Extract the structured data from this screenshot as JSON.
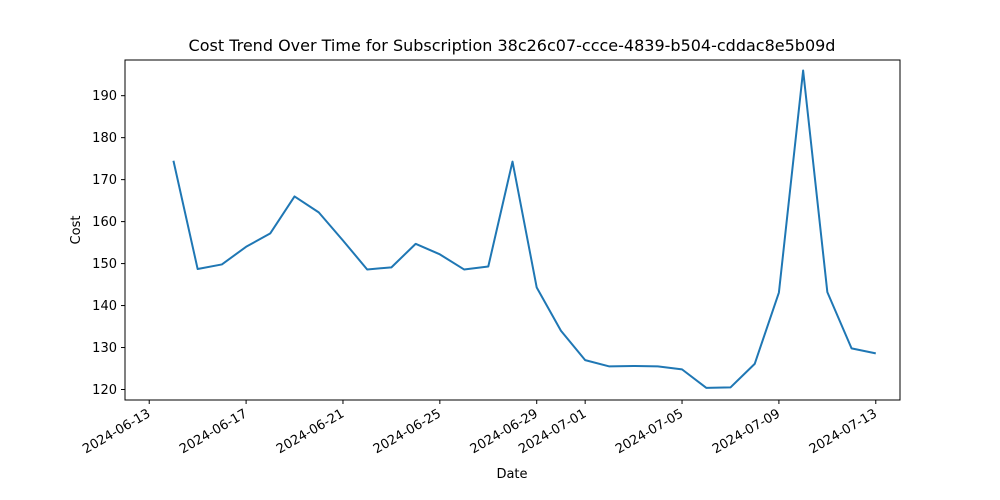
{
  "chart_data": {
    "type": "line",
    "title": "Cost Trend Over Time for Subscription 38c26c07-ccce-4839-b504-cddac8e5b09d",
    "xlabel": "Date",
    "ylabel": "Cost",
    "xlim": [
      "2024-06-12",
      "2024-07-14"
    ],
    "ylim": [
      117.5,
      198.5
    ],
    "x_ticks": [
      "2024-06-13",
      "2024-06-17",
      "2024-06-21",
      "2024-06-25",
      "2024-06-29",
      "2024-07-01",
      "2024-07-05",
      "2024-07-09",
      "2024-07-13"
    ],
    "y_ticks": [
      120,
      130,
      140,
      150,
      160,
      170,
      180,
      190
    ],
    "grid": false,
    "line_color": "#1f77b4",
    "series": [
      {
        "x": [
          "2024-06-14",
          "2024-06-15",
          "2024-06-16",
          "2024-06-17",
          "2024-06-18",
          "2024-06-19",
          "2024-06-20",
          "2024-06-21",
          "2024-06-22",
          "2024-06-23",
          "2024-06-24",
          "2024-06-25",
          "2024-06-26",
          "2024-06-27",
          "2024-06-28",
          "2024-06-29",
          "2024-06-30",
          "2024-07-01",
          "2024-07-02",
          "2024-07-03",
          "2024-07-04",
          "2024-07-05",
          "2024-07-06",
          "2024-07-07",
          "2024-07-08",
          "2024-07-09",
          "2024-07-10",
          "2024-07-11",
          "2024-07-12",
          "2024-07-13"
        ],
        "values": [
          174.5,
          148.7,
          149.8,
          154.0,
          157.2,
          166.0,
          162.2,
          155.5,
          148.6,
          149.1,
          154.7,
          152.2,
          148.6,
          149.3,
          174.3,
          144.3,
          134.0,
          127.0,
          125.5,
          125.6,
          125.5,
          124.8,
          120.4,
          120.5,
          126.1,
          143.1,
          196.0,
          143.2,
          129.8,
          128.6
        ]
      }
    ]
  }
}
